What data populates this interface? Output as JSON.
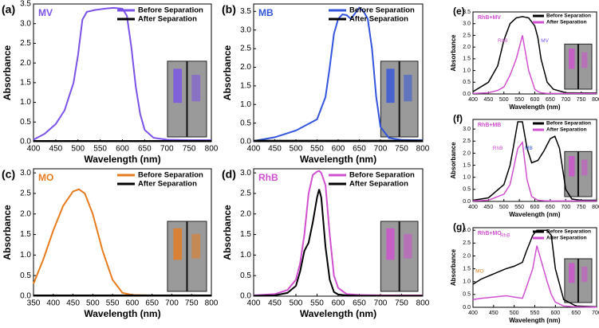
{
  "chart_data": [
    {
      "type": "line",
      "panel_label": "(a)",
      "title": "MV",
      "title_color": "#7b52e8",
      "x_label": "Wavelength (nm)",
      "y_label": "Absorbance",
      "xlim": [
        400,
        800
      ],
      "xticks": [
        400,
        450,
        500,
        550,
        600,
        650,
        700,
        750,
        800
      ],
      "ylim": [
        0,
        3.5
      ],
      "yticks": [
        {
          "value": 0,
          "label": "0.0"
        },
        {
          "value": 0.5,
          "label": "0.5"
        },
        {
          "value": 1,
          "label": "1.0"
        },
        {
          "value": 1.5,
          "label": "1.5"
        },
        {
          "value": 2,
          "label": "2.0"
        },
        {
          "value": 2.5,
          "label": "2.5"
        },
        {
          "value": 3,
          "label": "3.0"
        },
        {
          "value": 3.5,
          "label": "3.5"
        }
      ],
      "x": [
        400,
        425,
        450,
        470,
        490,
        500,
        510,
        520,
        540,
        560,
        580,
        600,
        610,
        620,
        630,
        640,
        650,
        670,
        700,
        750,
        800
      ],
      "series": [
        {
          "name": "Before Separation",
          "color": "#7b52e8",
          "values": [
            0.05,
            0.2,
            0.45,
            0.8,
            1.5,
            2.2,
            3.1,
            3.3,
            3.35,
            3.38,
            3.4,
            3.38,
            3.2,
            2.4,
            1.4,
            0.7,
            0.3,
            0.1,
            0.05,
            0.04,
            0.04
          ]
        },
        {
          "name": "After Separation",
          "color": "#000000",
          "values": [
            0.02,
            0.02,
            0.02,
            0.02,
            0.02,
            0.02,
            0.02,
            0.02,
            0.02,
            0.02,
            0.02,
            0.02,
            0.02,
            0.02,
            0.02,
            0.02,
            0.02,
            0.02,
            0.02,
            0.02,
            0.02
          ]
        }
      ]
    },
    {
      "type": "line",
      "panel_label": "(b)",
      "title": "MB",
      "title_color": "#3355dd",
      "x_label": "Wavelength (nm)",
      "y_label": "Absorbance",
      "xlim": [
        400,
        800
      ],
      "xticks": [
        400,
        450,
        500,
        550,
        600,
        650,
        700,
        750,
        800
      ],
      "ylim": [
        0,
        3.7
      ],
      "yticks": [
        {
          "value": 0,
          "label": "0.0"
        },
        {
          "value": 0.5,
          "label": "0.5"
        },
        {
          "value": 1,
          "label": "1.0"
        },
        {
          "value": 1.5,
          "label": "1.5"
        },
        {
          "value": 2,
          "label": "2.0"
        },
        {
          "value": 2.5,
          "label": "2.5"
        },
        {
          "value": 3,
          "label": "3.0"
        },
        {
          "value": 3.5,
          "label": "3.5"
        }
      ],
      "x": [
        400,
        450,
        500,
        550,
        570,
        580,
        590,
        600,
        610,
        620,
        630,
        640,
        650,
        660,
        670,
        680,
        690,
        700,
        720,
        750,
        800
      ],
      "series": [
        {
          "name": "Before Separation",
          "color": "#3355dd",
          "values": [
            0.02,
            0.12,
            0.3,
            0.6,
            1.2,
            2.0,
            2.9,
            3.3,
            3.42,
            3.4,
            3.3,
            3.45,
            3.6,
            3.5,
            3.3,
            2.5,
            1.2,
            0.4,
            0.1,
            0.05,
            0.04
          ]
        },
        {
          "name": "After Separation",
          "color": "#000000",
          "values": [
            0.03,
            0.03,
            0.03,
            0.03,
            0.03,
            0.03,
            0.03,
            0.03,
            0.03,
            0.03,
            0.03,
            0.03,
            0.03,
            0.03,
            0.03,
            0.03,
            0.03,
            0.03,
            0.03,
            0.03,
            0.03
          ]
        }
      ]
    },
    {
      "type": "line",
      "panel_label": "(c)",
      "title": "MO",
      "title_color": "#e87b1e",
      "x_label": "Wavelength (nm)",
      "y_label": "Absorbance",
      "xlim": [
        350,
        800
      ],
      "xticks": [
        350,
        400,
        450,
        500,
        550,
        600,
        650,
        700,
        750,
        800
      ],
      "ylim": [
        0,
        3.1
      ],
      "yticks": [
        {
          "value": 0,
          "label": "0.0"
        },
        {
          "value": 0.5,
          "label": "0.5"
        },
        {
          "value": 1,
          "label": "1.0"
        },
        {
          "value": 1.5,
          "label": "1.5"
        },
        {
          "value": 2,
          "label": "2.0"
        },
        {
          "value": 2.5,
          "label": "2.5"
        },
        {
          "value": 3,
          "label": "3.0"
        }
      ],
      "x": [
        350,
        375,
        400,
        425,
        450,
        465,
        480,
        500,
        525,
        550,
        575,
        600,
        650,
        700,
        750,
        800
      ],
      "series": [
        {
          "name": "Before Separation",
          "color": "#e87b1e",
          "values": [
            0.3,
            0.9,
            1.6,
            2.2,
            2.55,
            2.6,
            2.5,
            2.0,
            1.1,
            0.4,
            0.08,
            0.03,
            0.02,
            0.02,
            0.02,
            0.02
          ]
        },
        {
          "name": "After Separation",
          "color": "#000000",
          "values": [
            0.02,
            0.02,
            0.02,
            0.02,
            0.02,
            0.02,
            0.02,
            0.02,
            0.02,
            0.02,
            0.02,
            0.02,
            0.02,
            0.02,
            0.02,
            0.02
          ]
        }
      ]
    },
    {
      "type": "line",
      "panel_label": "(d)",
      "title": "RhB",
      "title_color": "#d050d0",
      "x_label": "Wavelength (nm)",
      "y_label": "Absorbance",
      "xlim": [
        400,
        800
      ],
      "xticks": [
        400,
        450,
        500,
        550,
        600,
        650,
        700,
        750,
        800
      ],
      "ylim": [
        0,
        3.1
      ],
      "yticks": [
        {
          "value": 0,
          "label": "0.0"
        },
        {
          "value": 0.5,
          "label": "0.5"
        },
        {
          "value": 1,
          "label": "1.0"
        },
        {
          "value": 1.5,
          "label": "1.5"
        },
        {
          "value": 2,
          "label": "2.0"
        },
        {
          "value": 2.5,
          "label": "2.5"
        },
        {
          "value": 3,
          "label": "3.0"
        }
      ],
      "x": [
        400,
        450,
        480,
        500,
        510,
        520,
        530,
        540,
        550,
        555,
        560,
        570,
        580,
        590,
        600,
        620,
        650,
        700,
        750,
        800
      ],
      "series": [
        {
          "name": "Before Separation",
          "color": "#d050d0",
          "values": [
            0.02,
            0.05,
            0.15,
            0.4,
            0.8,
            1.5,
            2.5,
            2.95,
            3.03,
            3.05,
            3.0,
            2.7,
            1.5,
            0.5,
            0.2,
            0.05,
            0.03,
            0.02,
            0.02,
            0.02
          ]
        },
        {
          "name": "After Separation",
          "color": "#000000",
          "values": [
            0.01,
            0.02,
            0.08,
            0.25,
            0.6,
            1.1,
            1.3,
            1.8,
            2.4,
            2.6,
            2.4,
            1.2,
            0.4,
            0.1,
            0.04,
            0.02,
            0.01,
            0.01,
            0.01,
            0.01
          ]
        }
      ]
    },
    {
      "type": "line",
      "panel_label": "(e)",
      "title": "RhB+MV",
      "title_color": "#d050d0",
      "x_label": "Wavelength (nm)",
      "y_label": "Absorbance",
      "xlim": [
        400,
        800
      ],
      "xticks": [
        400,
        450,
        500,
        550,
        600,
        650,
        700,
        750,
        800
      ],
      "ylim": [
        0,
        3.5
      ],
      "yticks": [
        {
          "value": 0,
          "label": "0.0"
        },
        {
          "value": 0.5,
          "label": "0.5"
        },
        {
          "value": 1,
          "label": "1.0"
        },
        {
          "value": 1.5,
          "label": "1.5"
        },
        {
          "value": 2,
          "label": "2.0"
        },
        {
          "value": 2.5,
          "label": "2.5"
        },
        {
          "value": 3,
          "label": "3.0"
        },
        {
          "value": 3.5,
          "label": "3.5"
        }
      ],
      "x": [
        400,
        450,
        480,
        500,
        520,
        540,
        560,
        580,
        600,
        610,
        620,
        640,
        660,
        700,
        750,
        800
      ],
      "series": [
        {
          "name": "Before Separation",
          "color": "#000000",
          "values": [
            0.1,
            0.5,
            1.2,
            2.3,
            3.0,
            3.25,
            3.3,
            3.25,
            2.9,
            2.4,
            1.5,
            0.5,
            0.2,
            0.05,
            0.04,
            0.04
          ]
        },
        {
          "name": "After Separation",
          "color": "#d050d0",
          "values": [
            0.02,
            0.05,
            0.15,
            0.3,
            0.8,
            1.5,
            2.5,
            1.0,
            0.2,
            0.1,
            0.05,
            0.02,
            0.02,
            0.02,
            0.02,
            0.02
          ]
        }
      ],
      "annotations": [
        {
          "text": "RhB",
          "color": "#d050d0"
        },
        {
          "text": "MV",
          "color": "#7b52e8"
        }
      ]
    },
    {
      "type": "line",
      "panel_label": "(f)",
      "title": "RhB+MB",
      "title_color": "#d050d0",
      "x_label": "Wavelength (nm)",
      "y_label": "Absorbance",
      "xlim": [
        400,
        800
      ],
      "xticks": [
        400,
        450,
        500,
        550,
        600,
        650,
        700,
        750,
        800
      ],
      "ylim": [
        0,
        3.4
      ],
      "yticks": [
        {
          "value": 0,
          "label": "0.0"
        },
        {
          "value": 0.5,
          "label": "0.5"
        },
        {
          "value": 1,
          "label": "1.0"
        },
        {
          "value": 1.5,
          "label": "1.5"
        },
        {
          "value": 2,
          "label": "2.0"
        },
        {
          "value": 2.5,
          "label": "2.5"
        },
        {
          "value": 3,
          "label": "3.0"
        }
      ],
      "x": [
        400,
        450,
        500,
        520,
        530,
        545,
        560,
        575,
        590,
        610,
        630,
        650,
        665,
        680,
        700,
        720,
        750,
        800
      ],
      "series": [
        {
          "name": "Before Separation",
          "color": "#000000",
          "values": [
            0.05,
            0.15,
            0.7,
            1.5,
            2.2,
            3.3,
            3.3,
            2.2,
            1.6,
            1.7,
            2.1,
            2.6,
            2.7,
            2.2,
            0.5,
            0.1,
            0.05,
            0.05
          ]
        },
        {
          "name": "After Separation",
          "color": "#d050d0",
          "values": [
            0.02,
            0.05,
            0.3,
            0.7,
            1.3,
            2.2,
            2.45,
            0.9,
            0.2,
            0.05,
            0.03,
            0.02,
            0.02,
            0.02,
            0.02,
            0.02,
            0.02,
            0.02
          ]
        }
      ],
      "annotations": [
        {
          "text": "RhB",
          "color": "#d050d0"
        },
        {
          "text": "MB",
          "color": "#3355dd"
        }
      ]
    },
    {
      "type": "line",
      "panel_label": "(g)",
      "title": "RhB+MO",
      "title_color": "#d050d0",
      "x_label": "Wavelength (nm)",
      "y_label": "Absorbance",
      "xlim": [
        400,
        700
      ],
      "xticks": [
        400,
        450,
        500,
        550,
        600,
        650,
        700
      ],
      "ylim": [
        0,
        3.1
      ],
      "yticks": [
        {
          "value": 0,
          "label": "0.0"
        },
        {
          "value": 0.5,
          "label": "0.5"
        },
        {
          "value": 1,
          "label": "1.0"
        },
        {
          "value": 1.5,
          "label": "1.5"
        },
        {
          "value": 2,
          "label": "2.0"
        },
        {
          "value": 2.5,
          "label": "2.5"
        },
        {
          "value": 3,
          "label": "3.0"
        }
      ],
      "x": [
        400,
        420,
        450,
        480,
        500,
        520,
        530,
        545,
        555,
        580,
        590,
        600,
        620,
        650,
        700
      ],
      "series": [
        {
          "name": "Before Separation",
          "color": "#000000",
          "values": [
            0.9,
            1.1,
            1.3,
            1.5,
            1.6,
            1.75,
            2.2,
            2.8,
            3.0,
            3.0,
            2.8,
            1.5,
            0.3,
            0.05,
            0.02
          ]
        },
        {
          "name": "After Separation",
          "color": "#d050d0",
          "values": [
            0.3,
            0.35,
            0.4,
            0.45,
            0.4,
            0.35,
            0.8,
            1.5,
            2.4,
            1.0,
            0.5,
            0.2,
            0.05,
            0.02,
            0.01
          ]
        }
      ],
      "annotations": [
        {
          "text": "RhB",
          "color": "#d050d0"
        },
        {
          "text": "MO",
          "color": "#e87b1e"
        }
      ]
    }
  ]
}
